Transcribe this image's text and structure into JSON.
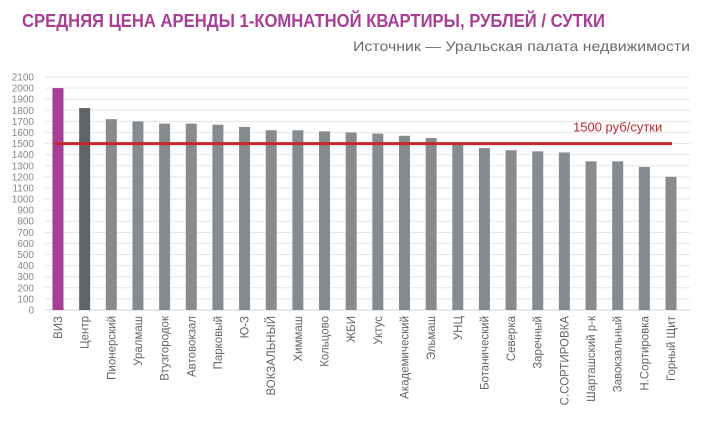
{
  "chart_data": {
    "type": "bar",
    "title": "СРЕДНЯЯ ЦЕНА АРЕНДЫ 1-КОМНАТНОЙ КВАРТИРЫ, РУБЛЕЙ / СУТКИ",
    "subtitle": "Источник — Уральская палата недвижимости",
    "xlabel": "",
    "ylabel": "",
    "ylim": [
      0,
      2100
    ],
    "yticks": [
      0,
      100,
      200,
      300,
      400,
      500,
      600,
      700,
      800,
      900,
      1000,
      1100,
      1200,
      1300,
      1400,
      1500,
      1600,
      1700,
      1800,
      1900,
      2000,
      2100
    ],
    "grid": true,
    "categories": [
      "ВИЗ",
      "Центр",
      "Пионерский",
      "Уралмаш",
      "Втузгородок",
      "Автовокзал",
      "Парковый",
      "Ю-З",
      "ВОКЗАЛЬНЫЙ",
      "Химмаш",
      "Кольцово",
      "ЖБИ",
      "Уктус",
      "Академический",
      "Эльмаш",
      "УНЦ",
      "Ботанический",
      "Северка",
      "Заречный",
      "С.СОРТИРОВКА",
      "Шарташский р-к",
      "Завокзальный",
      "Н.Сортировка",
      "Горный Щит"
    ],
    "values": [
      2000,
      1820,
      1720,
      1700,
      1680,
      1680,
      1670,
      1650,
      1620,
      1620,
      1610,
      1600,
      1590,
      1570,
      1550,
      1500,
      1460,
      1440,
      1430,
      1420,
      1340,
      1340,
      1290,
      1200
    ],
    "bar_colors": {
      "highlight": "#a83e96",
      "second": "#5f6468",
      "default": "#868b90"
    },
    "reference_line": {
      "value": 1500,
      "label": "1500 руб/сутки",
      "color": "#c1272d"
    },
    "title_color": "#a83e96",
    "subtitle_color": "#6b6b6b"
  }
}
